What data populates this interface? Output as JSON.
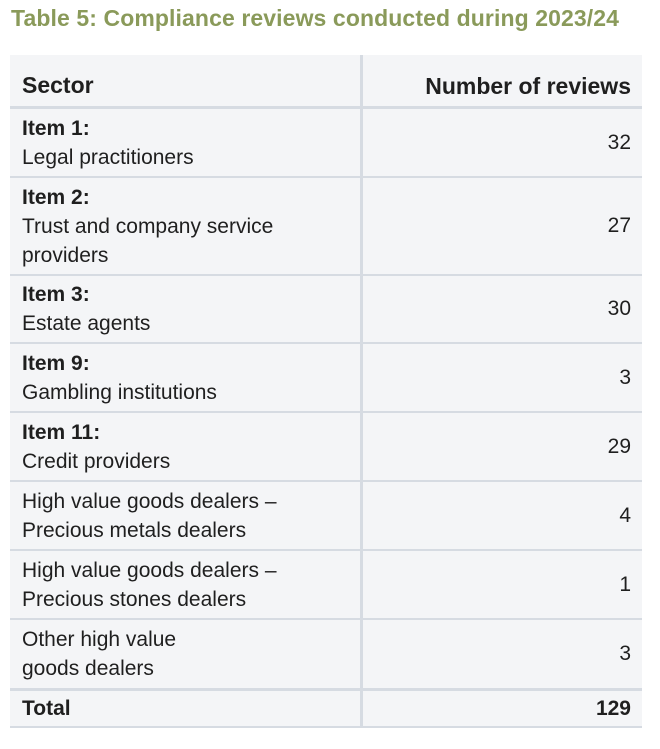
{
  "title": "Table 5: Compliance reviews conducted during 2023/24",
  "header": {
    "sector": "Sector",
    "reviews": "Number of reviews"
  },
  "rows": [
    {
      "item": "Item 1:",
      "sector": "Legal practitioners",
      "value": "32"
    },
    {
      "item": "Item 2:",
      "sector": "Trust and company service providers",
      "value": "27"
    },
    {
      "item": "Item 3:",
      "sector": "Estate agents",
      "value": "30"
    },
    {
      "item": "Item 9:",
      "sector": "Gambling institutions",
      "value": "3"
    },
    {
      "item": "Item 11:",
      "sector": "Credit providers",
      "value": "29"
    },
    {
      "item": "",
      "sector": "High value goods dealers – Precious metals dealers",
      "value": "4"
    },
    {
      "item": "",
      "sector": "High value goods dealers – Precious stones dealers",
      "value": "1"
    },
    {
      "item": "",
      "sector": "Other high value goods dealers",
      "value": "3"
    }
  ],
  "total": {
    "label": "Total",
    "value": "129"
  }
}
